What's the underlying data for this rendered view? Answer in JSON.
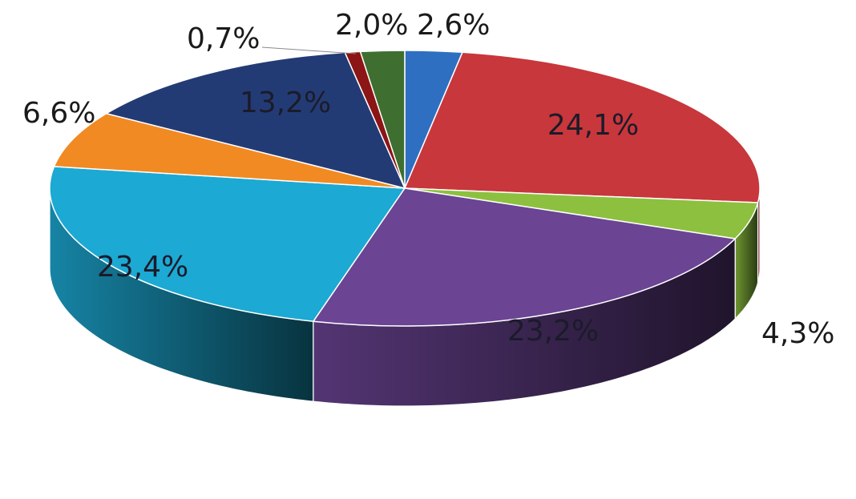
{
  "chart_data": {
    "type": "pie",
    "title": "",
    "slices": [
      {
        "label": "2,6%",
        "value": 2.6,
        "color": "#2e6fc1"
      },
      {
        "label": "24,1%",
        "value": 24.1,
        "color": "#c8373b"
      },
      {
        "label": "4,3%",
        "value": 4.3,
        "color": "#8dc03f"
      },
      {
        "label": "23,2%",
        "value": 23.2,
        "color": "#6b4494"
      },
      {
        "label": "23,4%",
        "value": 23.4,
        "color": "#1ca9d3"
      },
      {
        "label": "6,6%",
        "value": 6.6,
        "color": "#f18a23"
      },
      {
        "label": "13,2%",
        "value": 13.2,
        "color": "#233b75"
      },
      {
        "label": "0,7%",
        "value": 0.7,
        "color": "#8c1515"
      },
      {
        "label": "2,0%",
        "value": 2.0,
        "color": "#3e6f30"
      }
    ],
    "legend": "none",
    "three_d": true
  }
}
